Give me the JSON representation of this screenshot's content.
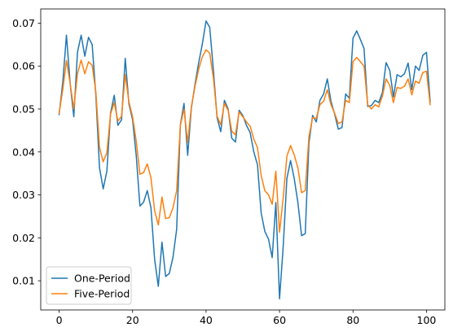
{
  "chart_data": {
    "type": "line",
    "title": "",
    "xlabel": "",
    "ylabel": "",
    "xlim": [
      -5,
      105
    ],
    "ylim": [
      0.0032,
      0.0733
    ],
    "x_ticks": [
      0,
      20,
      40,
      60,
      80,
      100
    ],
    "y_ticks": [
      0.01,
      0.02,
      0.03,
      0.04,
      0.05,
      0.06,
      0.07
    ],
    "x_tick_labels": [
      "0",
      "20",
      "40",
      "60",
      "80",
      "100"
    ],
    "y_tick_labels": [
      "0.01",
      "0.02",
      "0.03",
      "0.04",
      "0.05",
      "0.06",
      "0.07"
    ],
    "grid": false,
    "legend_position": "lower-left",
    "series": [
      {
        "name": "One-Period",
        "color": "#1f77b4",
        "values": [
          0.0487,
          0.0562,
          0.0672,
          0.056,
          0.0482,
          0.0632,
          0.0672,
          0.0623,
          0.0667,
          0.065,
          0.0532,
          0.0363,
          0.0314,
          0.0355,
          0.049,
          0.0532,
          0.0462,
          0.0475,
          0.0618,
          0.0512,
          0.0475,
          0.0391,
          0.0274,
          0.0283,
          0.031,
          0.027,
          0.015,
          0.0087,
          0.019,
          0.011,
          0.0117,
          0.0155,
          0.022,
          0.0463,
          0.0513,
          0.0392,
          0.0502,
          0.0558,
          0.0608,
          0.0652,
          0.0705,
          0.069,
          0.059,
          0.048,
          0.0447,
          0.052,
          0.05,
          0.0432,
          0.0423,
          0.0497,
          0.0485,
          0.0462,
          0.0445,
          0.04,
          0.037,
          0.0258,
          0.0215,
          0.0197,
          0.0154,
          0.0282,
          0.0058,
          0.018,
          0.0338,
          0.038,
          0.0338,
          0.0282,
          0.0205,
          0.021,
          0.042,
          0.0485,
          0.047,
          0.052,
          0.0535,
          0.057,
          0.0518,
          0.0488,
          0.0453,
          0.0457,
          0.0535,
          0.0525,
          0.0665,
          0.0682,
          0.0662,
          0.0641,
          0.0506,
          0.0508,
          0.052,
          0.0515,
          0.0538,
          0.0608,
          0.059,
          0.0528,
          0.058,
          0.0575,
          0.0582,
          0.0607,
          0.0545,
          0.06,
          0.059,
          0.0625,
          0.0632,
          0.0517
        ]
      },
      {
        "name": "Five-Period",
        "color": "#ff7f0e",
        "values": [
          0.049,
          0.0545,
          0.0613,
          0.056,
          0.05,
          0.0582,
          0.0614,
          0.0582,
          0.061,
          0.0602,
          0.054,
          0.041,
          0.0377,
          0.0398,
          0.0488,
          0.0515,
          0.0472,
          0.0483,
          0.058,
          0.0517,
          0.0482,
          0.0425,
          0.0348,
          0.0352,
          0.0372,
          0.034,
          0.0263,
          0.023,
          0.0295,
          0.0245,
          0.0247,
          0.027,
          0.031,
          0.0462,
          0.05,
          0.0422,
          0.0505,
          0.0553,
          0.0593,
          0.0622,
          0.0638,
          0.063,
          0.0572,
          0.0483,
          0.0463,
          0.0513,
          0.0497,
          0.0448,
          0.044,
          0.0493,
          0.0482,
          0.047,
          0.046,
          0.043,
          0.041,
          0.0345,
          0.031,
          0.03,
          0.0278,
          0.0355,
          0.0213,
          0.0293,
          0.039,
          0.0415,
          0.0393,
          0.0363,
          0.0305,
          0.031,
          0.0435,
          0.048,
          0.0478,
          0.051,
          0.0518,
          0.0545,
          0.051,
          0.049,
          0.0466,
          0.047,
          0.052,
          0.0515,
          0.061,
          0.062,
          0.061,
          0.06,
          0.051,
          0.05,
          0.051,
          0.0505,
          0.053,
          0.057,
          0.0555,
          0.0515,
          0.055,
          0.0548,
          0.0553,
          0.057,
          0.0533,
          0.0565,
          0.056,
          0.0585,
          0.0588,
          0.051
        ]
      }
    ]
  }
}
